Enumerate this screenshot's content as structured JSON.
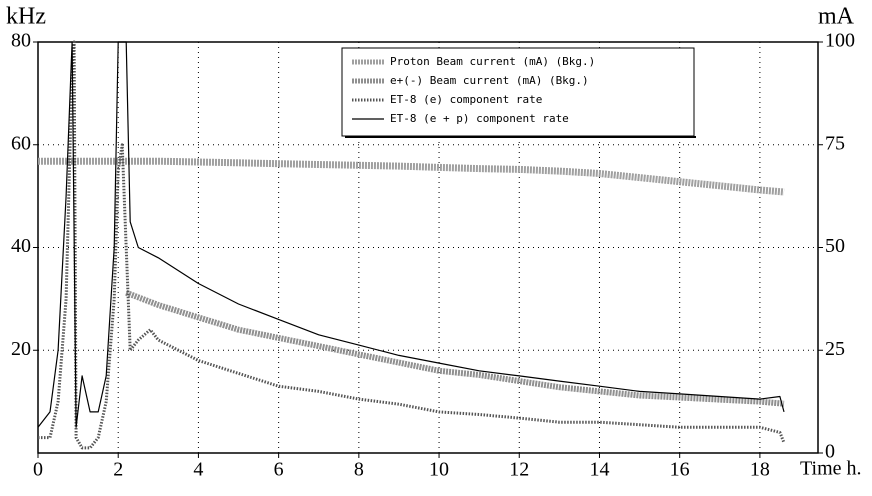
{
  "chart_data": {
    "type": "line",
    "y_label": "kHz",
    "y2_label": "mA",
    "x_label": "Time h.",
    "xlim": [
      0,
      19
    ],
    "xticks": [
      0,
      2,
      4,
      6,
      8,
      10,
      12,
      14,
      16,
      18
    ],
    "ylim": [
      0,
      80
    ],
    "yticks": [
      20,
      40,
      60,
      80
    ],
    "y2lim": [
      0,
      100
    ],
    "y2ticks": [
      0,
      25,
      50,
      75,
      100
    ],
    "grid": true,
    "legend": "upper right",
    "series": [
      {
        "name": "Proton Beam current (mA) (Bkg.)",
        "color": "#a0a0a0",
        "axis": "y2",
        "x": [
          0,
          1,
          2,
          3,
          4,
          5,
          6,
          7,
          8,
          9,
          10,
          11,
          12,
          13,
          14,
          15,
          16,
          17,
          18,
          18.6
        ],
        "values": [
          71,
          71,
          71,
          71,
          70.8,
          70.6,
          70.4,
          70.2,
          70,
          69.8,
          69.5,
          69.2,
          69,
          68.6,
          68,
          67,
          66,
          65,
          64,
          63.5
        ]
      },
      {
        "name": "e+(-) Beam current (mA) (Bkg.)",
        "color": "#909090",
        "axis": "y2",
        "x": [
          2.2,
          3,
          4,
          5,
          6,
          7,
          8,
          9,
          10,
          11,
          12,
          13,
          14,
          15,
          16,
          17,
          18,
          18.6
        ],
        "values": [
          39,
          36,
          33,
          30,
          28,
          26,
          24,
          22,
          20,
          19,
          17.5,
          16,
          15,
          14,
          13.5,
          13,
          12.5,
          12
        ]
      },
      {
        "name": "ET-8 (e) component rate",
        "color": "#555555",
        "axis": "y",
        "x": [
          0,
          0.3,
          0.5,
          0.7,
          0.85,
          0.9,
          0.95,
          1.1,
          1.3,
          1.5,
          1.7,
          1.9,
          2.0,
          2.1,
          2.2,
          2.3,
          2.5,
          2.8,
          3,
          4,
          5,
          6,
          7,
          8,
          9,
          10,
          11,
          12,
          13,
          14,
          15,
          16,
          17,
          18,
          18.5,
          18.6
        ],
        "values": [
          3,
          3,
          10,
          30,
          75,
          80,
          3,
          1,
          1,
          3,
          10,
          30,
          55,
          60,
          40,
          20,
          22,
          24,
          22,
          18,
          15.5,
          13,
          12,
          10.5,
          9.5,
          8,
          7.5,
          6.8,
          6,
          6,
          5.5,
          5,
          5,
          5,
          4,
          2
        ]
      },
      {
        "name": "ET-8 (e + p) component rate",
        "color": "#000000",
        "axis": "y",
        "x": [
          0,
          0.3,
          0.5,
          0.7,
          0.85,
          0.95,
          1.1,
          1.3,
          1.5,
          1.7,
          1.9,
          2.0,
          2.2,
          2.3,
          2.5,
          3,
          4,
          5,
          6,
          7,
          8,
          9,
          10,
          11,
          12,
          13,
          14,
          15,
          16,
          17,
          18,
          18.5,
          18.6
        ],
        "values": [
          5,
          8,
          20,
          50,
          80,
          5,
          15,
          8,
          8,
          15,
          40,
          80,
          80,
          45,
          40,
          38,
          33,
          29,
          26,
          23,
          21,
          19,
          17.5,
          16,
          15,
          14,
          13,
          12,
          11.5,
          11,
          10.5,
          11,
          8
        ]
      }
    ]
  }
}
